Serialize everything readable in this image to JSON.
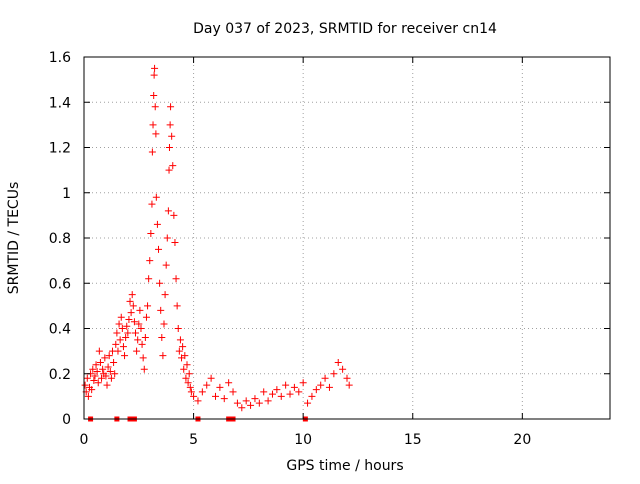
{
  "chart_data": {
    "type": "scatter",
    "title": "Day 037 of 2023, SRMTID for receiver cn14",
    "xlabel": "GPS time / hours",
    "ylabel": "SRMTID / TECUs",
    "xlim": [
      0,
      24
    ],
    "ylim": [
      0,
      1.6
    ],
    "x_ticks": [
      0,
      5,
      10,
      15,
      20
    ],
    "x_tick_labels": [
      "0",
      "5",
      "10",
      "15",
      "20"
    ],
    "y_ticks": [
      0,
      0.2,
      0.4,
      0.6,
      0.8,
      1.0,
      1.2,
      1.4,
      1.6
    ],
    "y_tick_labels": [
      "0",
      "0.2",
      "0.4",
      "0.6",
      "0.8",
      "1",
      "1.2",
      "1.4",
      "1.6"
    ],
    "grid": true,
    "marker": "plus",
    "color": "#ff0000",
    "series": [
      {
        "name": "cn14",
        "points": [
          [
            0.05,
            0.15
          ],
          [
            0.1,
            0.12
          ],
          [
            0.15,
            0.18
          ],
          [
            0.2,
            0.1
          ],
          [
            0.25,
            0.14
          ],
          [
            0.3,
            0.2
          ],
          [
            0.35,
            0.13
          ],
          [
            0.4,
            0.22
          ],
          [
            0.45,
            0.17
          ],
          [
            0.5,
            0.19
          ],
          [
            0.55,
            0.24
          ],
          [
            0.6,
            0.21
          ],
          [
            0.65,
            0.16
          ],
          [
            0.7,
            0.3
          ],
          [
            0.75,
            0.25
          ],
          [
            0.8,
            0.18
          ],
          [
            0.85,
            0.22
          ],
          [
            0.9,
            0.2
          ],
          [
            0.95,
            0.27
          ],
          [
            1.0,
            0.19
          ],
          [
            1.05,
            0.15
          ],
          [
            1.1,
            0.23
          ],
          [
            1.15,
            0.28
          ],
          [
            1.2,
            0.21
          ],
          [
            1.25,
            0.18
          ],
          [
            1.3,
            0.3
          ],
          [
            1.35,
            0.25
          ],
          [
            1.4,
            0.2
          ],
          [
            1.45,
            0.33
          ],
          [
            1.5,
            0.38
          ],
          [
            1.55,
            0.3
          ],
          [
            1.6,
            0.42
          ],
          [
            1.65,
            0.35
          ],
          [
            1.7,
            0.45
          ],
          [
            1.75,
            0.4
          ],
          [
            1.8,
            0.32
          ],
          [
            1.85,
            0.28
          ],
          [
            1.9,
            0.36
          ],
          [
            1.95,
            0.41
          ],
          [
            2.0,
            0.38
          ],
          [
            2.05,
            0.44
          ],
          [
            2.1,
            0.52
          ],
          [
            2.15,
            0.47
          ],
          [
            2.2,
            0.55
          ],
          [
            2.25,
            0.5
          ],
          [
            2.3,
            0.43
          ],
          [
            2.35,
            0.38
          ],
          [
            2.4,
            0.3
          ],
          [
            2.45,
            0.35
          ],
          [
            2.5,
            0.42
          ],
          [
            2.55,
            0.48
          ],
          [
            2.6,
            0.4
          ],
          [
            2.65,
            0.33
          ],
          [
            2.7,
            0.27
          ],
          [
            2.75,
            0.22
          ],
          [
            2.8,
            0.36
          ],
          [
            2.85,
            0.45
          ],
          [
            2.9,
            0.5
          ],
          [
            2.95,
            0.62
          ],
          [
            3.0,
            0.7
          ],
          [
            3.05,
            0.82
          ],
          [
            3.1,
            0.95
          ],
          [
            3.12,
            1.18
          ],
          [
            3.15,
            1.3
          ],
          [
            3.18,
            1.43
          ],
          [
            3.2,
            1.52
          ],
          [
            3.22,
            1.55
          ],
          [
            3.25,
            1.38
          ],
          [
            3.28,
            1.26
          ],
          [
            3.3,
            0.98
          ],
          [
            3.35,
            0.86
          ],
          [
            3.4,
            0.75
          ],
          [
            3.45,
            0.6
          ],
          [
            3.5,
            0.48
          ],
          [
            3.55,
            0.36
          ],
          [
            3.6,
            0.28
          ],
          [
            3.65,
            0.42
          ],
          [
            3.7,
            0.55
          ],
          [
            3.75,
            0.68
          ],
          [
            3.8,
            0.8
          ],
          [
            3.85,
            0.92
          ],
          [
            3.88,
            1.1
          ],
          [
            3.9,
            1.2
          ],
          [
            3.93,
            1.3
          ],
          [
            3.95,
            1.38
          ],
          [
            4.0,
            1.25
          ],
          [
            4.05,
            1.12
          ],
          [
            4.1,
            0.9
          ],
          [
            4.15,
            0.78
          ],
          [
            4.2,
            0.62
          ],
          [
            4.25,
            0.5
          ],
          [
            4.3,
            0.4
          ],
          [
            4.35,
            0.3
          ],
          [
            4.4,
            0.35
          ],
          [
            4.45,
            0.27
          ],
          [
            4.5,
            0.32
          ],
          [
            4.55,
            0.22
          ],
          [
            4.6,
            0.28
          ],
          [
            4.65,
            0.18
          ],
          [
            4.7,
            0.24
          ],
          [
            4.75,
            0.16
          ],
          [
            4.8,
            0.2
          ],
          [
            4.85,
            0.14
          ],
          [
            4.9,
            0.12
          ],
          [
            5.0,
            0.1
          ],
          [
            5.2,
            0.08
          ],
          [
            5.4,
            0.12
          ],
          [
            5.6,
            0.15
          ],
          [
            5.8,
            0.18
          ],
          [
            6.0,
            0.1
          ],
          [
            6.2,
            0.14
          ],
          [
            6.4,
            0.09
          ],
          [
            6.6,
            0.16
          ],
          [
            6.8,
            0.12
          ],
          [
            7.0,
            0.07
          ],
          [
            7.2,
            0.05
          ],
          [
            7.4,
            0.08
          ],
          [
            7.6,
            0.06
          ],
          [
            7.8,
            0.09
          ],
          [
            8.0,
            0.07
          ],
          [
            8.2,
            0.12
          ],
          [
            8.4,
            0.08
          ],
          [
            8.6,
            0.11
          ],
          [
            8.8,
            0.13
          ],
          [
            9.0,
            0.1
          ],
          [
            9.2,
            0.15
          ],
          [
            9.4,
            0.11
          ],
          [
            9.6,
            0.14
          ],
          [
            9.8,
            0.12
          ],
          [
            10.0,
            0.16
          ],
          [
            10.2,
            0.07
          ],
          [
            10.4,
            0.1
          ],
          [
            10.6,
            0.13
          ],
          [
            10.8,
            0.15
          ],
          [
            11.0,
            0.18
          ],
          [
            11.2,
            0.14
          ],
          [
            11.4,
            0.2
          ],
          [
            11.6,
            0.25
          ],
          [
            11.8,
            0.22
          ],
          [
            12.0,
            0.18
          ],
          [
            12.1,
            0.15
          ]
        ]
      }
    ],
    "baseline_markers_x": [
      0.3,
      1.5,
      2.1,
      2.3,
      5.2,
      6.6,
      6.8,
      10.1
    ]
  }
}
